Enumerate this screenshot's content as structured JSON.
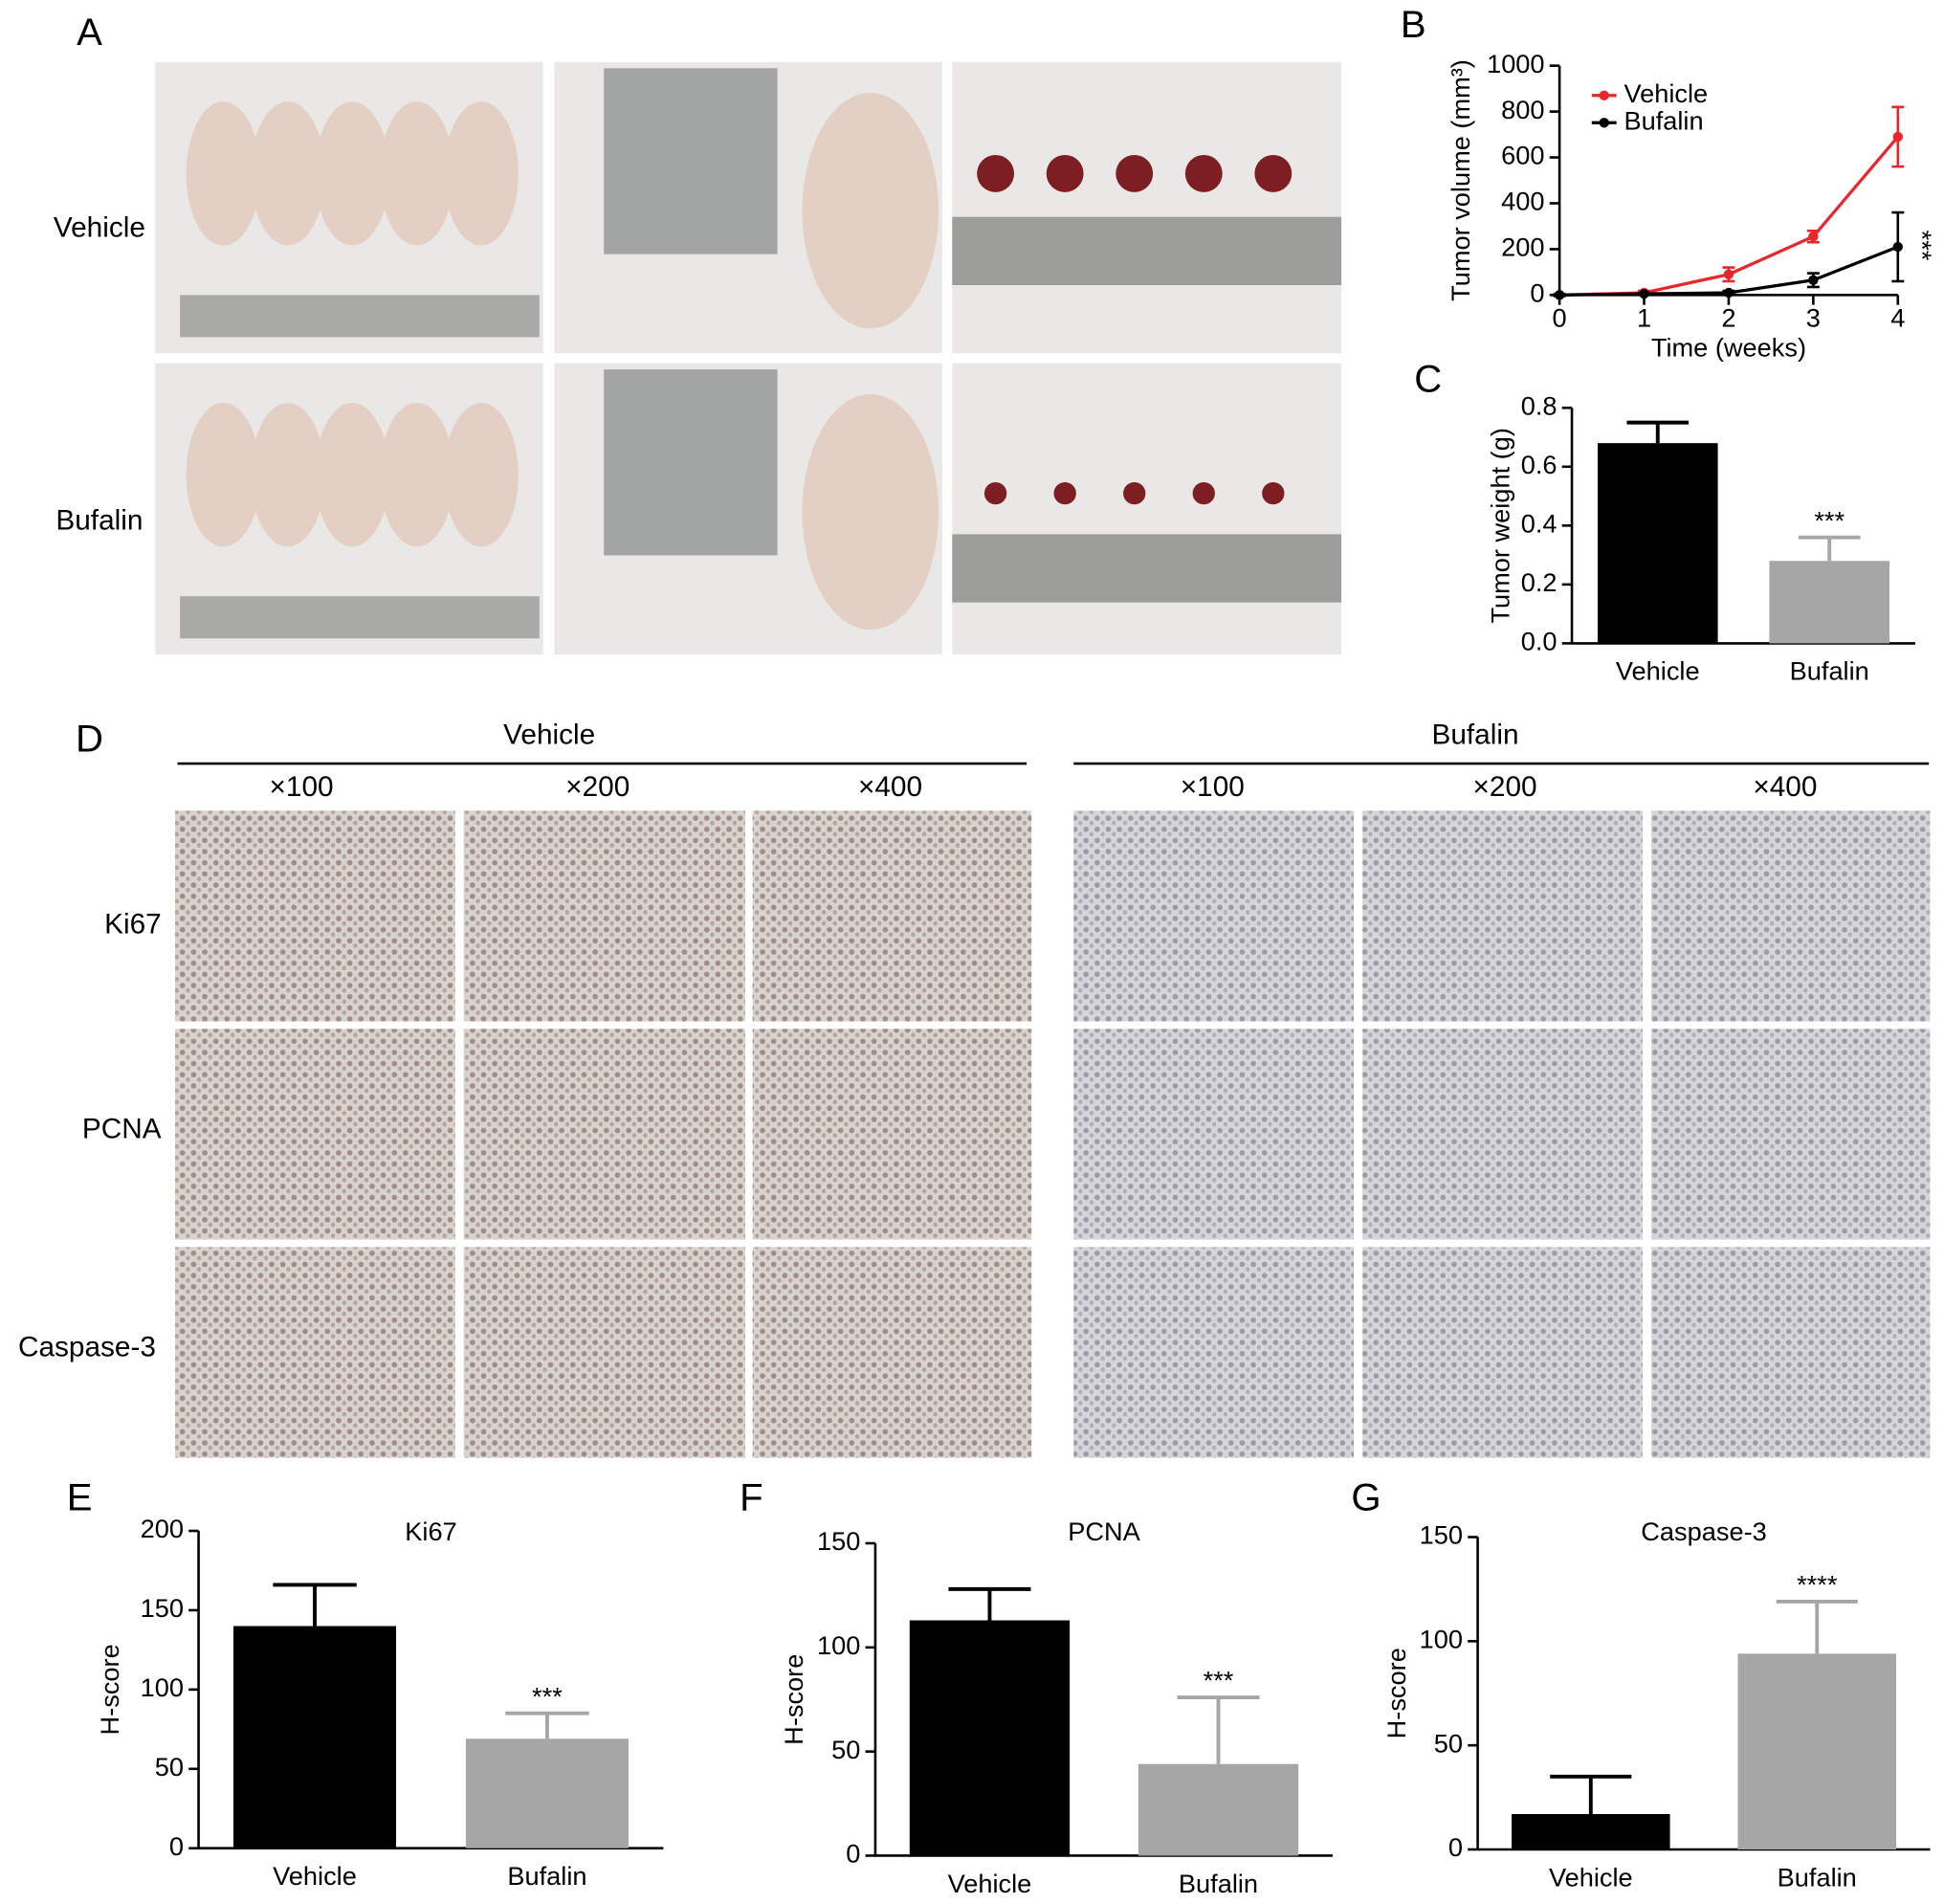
{
  "figure": {
    "panel_labels": [
      "A",
      "B",
      "C",
      "D",
      "E",
      "F",
      "G"
    ],
    "panel_a": {
      "rows": [
        "Vehicle",
        "Bufalin"
      ]
    },
    "panel_d": {
      "groups": [
        "Vehicle",
        "Bufalin"
      ],
      "magnifications": [
        "×100",
        "×200",
        "×400"
      ],
      "rows": [
        "Ki67",
        "PCNA",
        "Caspase-3"
      ]
    }
  },
  "chart_data": [
    {
      "type": "line",
      "x_label": "Time (weeks)",
      "y_label": "Tumor volume (mm³)",
      "x": [
        0,
        1,
        2,
        3,
        4
      ],
      "xlim": [
        0,
        4
      ],
      "xticks": [
        0,
        1,
        2,
        3,
        4
      ],
      "ylim": [
        0,
        1000
      ],
      "yticks": [
        0,
        200,
        400,
        600,
        800,
        1000
      ],
      "legend": "upper left",
      "series": [
        {
          "name": "Vehicle",
          "color": "#e8262b",
          "values": [
            0,
            10,
            90,
            255,
            690
          ],
          "errors": [
            5,
            8,
            30,
            25,
            130
          ]
        },
        {
          "name": "Bufalin",
          "color": "#000000",
          "values": [
            0,
            5,
            10,
            65,
            210
          ],
          "errors": [
            3,
            4,
            8,
            30,
            150
          ]
        }
      ],
      "annotation": "***"
    },
    {
      "type": "bar",
      "y_label": "Tumor weight (g)",
      "categories": [
        "Vehicle",
        "Bufalin"
      ],
      "values": [
        0.68,
        0.28
      ],
      "errors": [
        0.07,
        0.08
      ],
      "colors": [
        "#000000",
        "#a6a6a6"
      ],
      "ylim": [
        0,
        0.8
      ],
      "yticks": [
        {
          "value": 0,
          "label": "0.0"
        },
        0.2,
        0.4,
        0.6,
        0.8
      ],
      "annotation": "***"
    },
    {
      "type": "bar",
      "title": "Ki67",
      "y_label": "H-score",
      "categories": [
        "Vehicle",
        "Bufalin"
      ],
      "values": [
        140,
        69
      ],
      "errors": [
        26,
        16
      ],
      "colors": [
        "#000000",
        "#a6a6a6"
      ],
      "ylim": [
        0,
        200
      ],
      "yticks": [
        0,
        50,
        100,
        150,
        200
      ],
      "annotation": "***"
    },
    {
      "type": "bar",
      "title": "PCNA",
      "y_label": "H-score",
      "categories": [
        "Vehicle",
        "Bufalin"
      ],
      "values": [
        113,
        44
      ],
      "errors": [
        15,
        32
      ],
      "colors": [
        "#000000",
        "#a6a6a6"
      ],
      "ylim": [
        0,
        150
      ],
      "yticks": [
        0,
        50,
        100,
        150
      ],
      "annotation": "***"
    },
    {
      "type": "bar",
      "title": "Caspase-3",
      "y_label": "H-score",
      "categories": [
        "Vehicle",
        "Bufalin"
      ],
      "values": [
        17,
        94
      ],
      "errors": [
        18,
        25
      ],
      "colors": [
        "#000000",
        "#a6a6a6"
      ],
      "ylim": [
        0,
        150
      ],
      "yticks": [
        0,
        50,
        100,
        150
      ],
      "annotation": "****"
    }
  ]
}
